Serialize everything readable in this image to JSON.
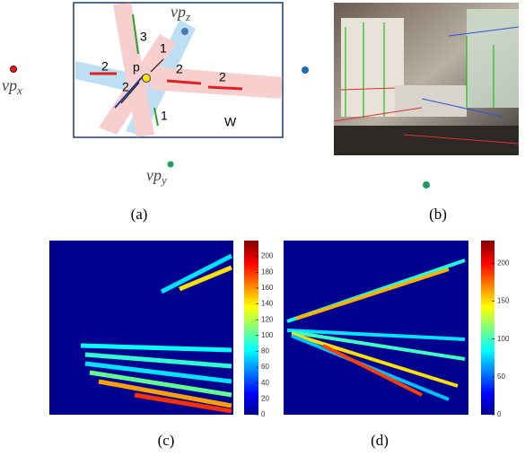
{
  "panel_a": {
    "caption": "(a)",
    "vanishing_points": [
      {
        "base": "vp",
        "sub": "x"
      },
      {
        "base": "vp",
        "sub": "z"
      },
      {
        "base": "vp",
        "sub": "y"
      }
    ],
    "point_label": "p",
    "region_label": "W",
    "segment_labels": [
      "3",
      "1",
      "2",
      "2",
      "2",
      "2",
      "1"
    ]
  },
  "panel_b": {
    "caption": "(b)"
  },
  "panel_c": {
    "caption": "(c)",
    "colorbar_ticks": [
      0,
      20,
      40,
      60,
      80,
      100,
      120,
      140,
      160,
      180,
      200
    ],
    "colorbar_max": 220
  },
  "panel_d": {
    "caption": "(d)",
    "colorbar_ticks": [
      0,
      50,
      100,
      150,
      200
    ],
    "colorbar_max": 230
  }
}
